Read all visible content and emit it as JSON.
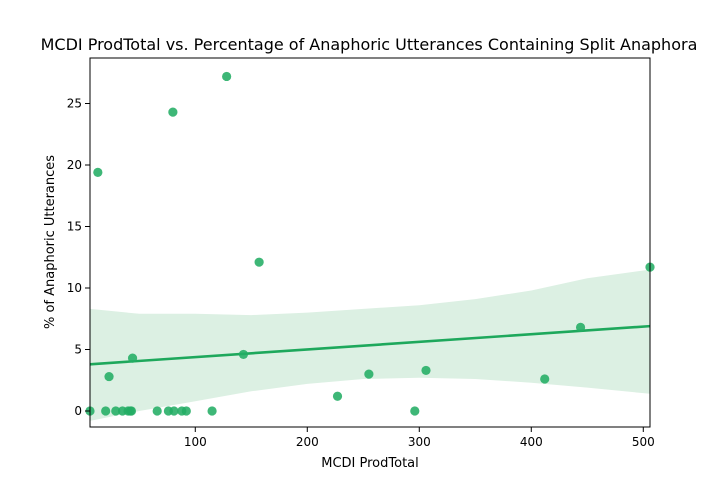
{
  "chart_data": {
    "type": "scatter",
    "title": "MCDI ProdTotal vs. Percentage of Anaphoric Utterances Containing Split Anaphora",
    "xlabel": "MCDI ProdTotal",
    "ylabel": "% of Anaphoric Utterances",
    "xlim": [
      6,
      506
    ],
    "ylim": [
      -1.3,
      28.7
    ],
    "xticks": [
      100,
      200,
      300,
      400,
      500
    ],
    "yticks": [
      0,
      5,
      10,
      15,
      20,
      25
    ],
    "grid": false,
    "points": [
      {
        "x": 6,
        "y": 0
      },
      {
        "x": 13,
        "y": 19.4
      },
      {
        "x": 20,
        "y": 0
      },
      {
        "x": 23,
        "y": 2.8
      },
      {
        "x": 29,
        "y": 0
      },
      {
        "x": 35,
        "y": 0
      },
      {
        "x": 40,
        "y": 0
      },
      {
        "x": 42,
        "y": 0
      },
      {
        "x": 43,
        "y": 0
      },
      {
        "x": 44,
        "y": 4.3
      },
      {
        "x": 66,
        "y": 0
      },
      {
        "x": 76,
        "y": 0
      },
      {
        "x": 80,
        "y": 24.3
      },
      {
        "x": 81,
        "y": 0
      },
      {
        "x": 88,
        "y": 0
      },
      {
        "x": 92,
        "y": 0
      },
      {
        "x": 115,
        "y": 0
      },
      {
        "x": 128,
        "y": 27.2
      },
      {
        "x": 143,
        "y": 4.6
      },
      {
        "x": 157,
        "y": 12.1
      },
      {
        "x": 227,
        "y": 1.2
      },
      {
        "x": 255,
        "y": 3.0
      },
      {
        "x": 296,
        "y": 0
      },
      {
        "x": 306,
        "y": 3.3
      },
      {
        "x": 412,
        "y": 2.6
      },
      {
        "x": 444,
        "y": 6.8
      },
      {
        "x": 506,
        "y": 11.7
      }
    ],
    "regression": {
      "x": [
        6,
        506
      ],
      "y": [
        3.8,
        6.9
      ]
    },
    "confidence_band": {
      "x": [
        6,
        50,
        100,
        150,
        200,
        250,
        300,
        350,
        400,
        450,
        506
      ],
      "lower": [
        -0.8,
        0.0,
        0.8,
        1.6,
        2.2,
        2.6,
        2.7,
        2.6,
        2.3,
        1.9,
        1.4
      ],
      "upper": [
        8.3,
        7.9,
        7.9,
        7.8,
        8.0,
        8.3,
        8.6,
        9.1,
        9.8,
        10.8,
        11.5
      ]
    },
    "colors": {
      "points": "#23ad64",
      "line": "#1ea85c",
      "band": "#dcf0e3",
      "axes": "#000000"
    }
  }
}
